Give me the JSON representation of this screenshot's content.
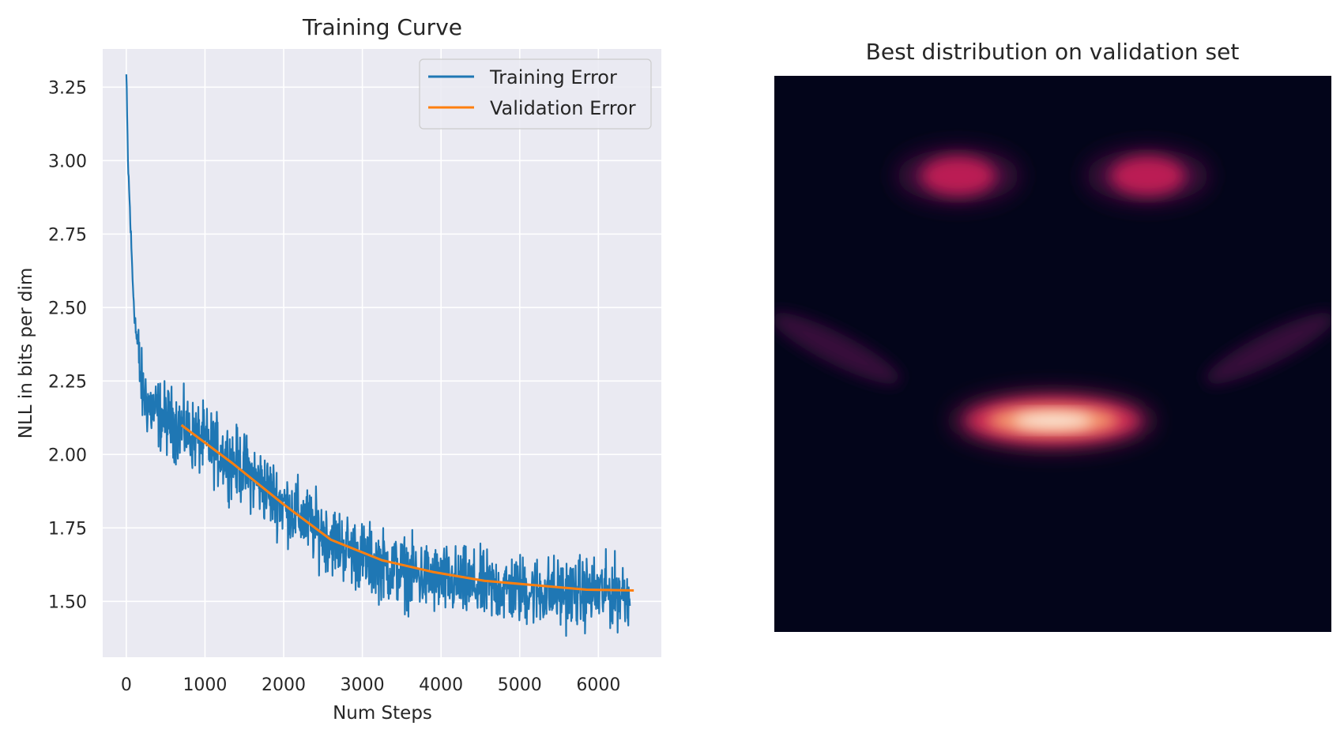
{
  "chart_data": [
    {
      "type": "line",
      "title": "Training Curve",
      "xlabel": "Num Steps",
      "ylabel": "NLL in bits per dim",
      "xlim": [
        -300,
        6800
      ],
      "ylim": [
        1.31,
        3.38
      ],
      "xticks": [
        0,
        1000,
        2000,
        3000,
        4000,
        5000,
        6000
      ],
      "xtick_labels": [
        "0",
        "1000",
        "2000",
        "3000",
        "4000",
        "5000",
        "6000"
      ],
      "yticks": [
        1.5,
        1.75,
        2.0,
        2.25,
        2.5,
        2.75,
        3.0,
        3.25
      ],
      "ytick_labels": [
        "1.50",
        "1.75",
        "2.00",
        "2.25",
        "2.50",
        "2.75",
        "3.00",
        "3.25"
      ],
      "grid": true,
      "legend_position": "top-right",
      "series": [
        {
          "name": "Training Error",
          "color": "#1f77b4",
          "x": [
            0,
            20,
            50,
            80,
            100,
            130,
            160,
            200,
            300,
            400,
            500,
            700,
            1000,
            1500,
            2000,
            2500,
            3000,
            3500,
            4000,
            4500,
            5000,
            5500,
            6000,
            6400
          ],
          "y": [
            3.29,
            3.0,
            2.8,
            2.6,
            2.5,
            2.4,
            2.32,
            2.22,
            2.16,
            2.14,
            2.12,
            2.09,
            2.04,
            1.95,
            1.83,
            1.73,
            1.65,
            1.6,
            1.57,
            1.55,
            1.54,
            1.53,
            1.53,
            1.53
          ],
          "noise_amplitude": 0.09
        },
        {
          "name": "Validation Error",
          "color": "#ff7f0e",
          "x": [
            700,
            1350,
            2000,
            2600,
            3250,
            3900,
            4550,
            5200,
            5850,
            6450
          ],
          "y": [
            2.1,
            1.97,
            1.83,
            1.71,
            1.64,
            1.6,
            1.57,
            1.555,
            1.54,
            1.537
          ]
        }
      ]
    },
    {
      "type": "heatmap",
      "title": "Best distribution on validation set",
      "colormap": "rocket",
      "axes_visible": false,
      "blobs": [
        {
          "cx": 0.33,
          "cy": 0.18,
          "sx": 0.11,
          "sy": 0.035,
          "intensity": 0.55
        },
        {
          "cx": 0.67,
          "cy": 0.18,
          "sx": 0.11,
          "sy": 0.035,
          "intensity": 0.55
        },
        {
          "cx": 0.11,
          "cy": 0.49,
          "sx": 0.13,
          "sy": 0.02,
          "angle": 27,
          "intensity": 0.18
        },
        {
          "cx": 0.89,
          "cy": 0.49,
          "sx": 0.13,
          "sy": 0.02,
          "angle": -27,
          "intensity": 0.18
        },
        {
          "cx": 0.5,
          "cy": 0.62,
          "sx": 0.18,
          "sy": 0.04,
          "intensity": 1.0
        }
      ]
    }
  ]
}
